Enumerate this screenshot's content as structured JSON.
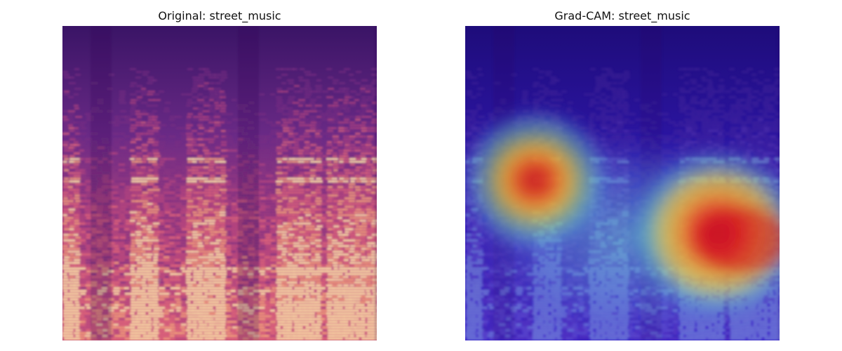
{
  "panels": [
    {
      "title": "Original: street_music",
      "kind": "spectrogram"
    },
    {
      "title": "Grad-CAM: street_music",
      "kind": "gradcam-overlay"
    }
  ],
  "colors": {
    "spectrogram_low": "#1b0c41",
    "spectrogram_mid": "#8a2e7a",
    "spectrogram_high": "#fbd28a",
    "heat_peak": "#d6121c",
    "heat_warm": "#f7c22a",
    "heat_cool": "#5fd6c7",
    "heat_base": "#2a18c8"
  }
}
